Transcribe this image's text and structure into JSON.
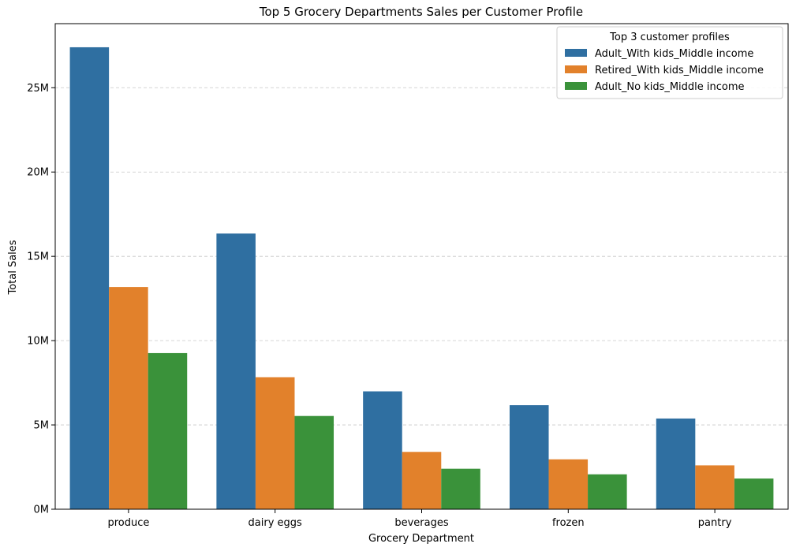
{
  "chart_data": {
    "type": "bar",
    "title": "Top 5 Grocery Departments Sales per Customer Profile",
    "xlabel": "Grocery Department",
    "ylabel": "Total Sales",
    "categories": [
      "produce",
      "dairy eggs",
      "beverages",
      "frozen",
      "pantry"
    ],
    "series": [
      {
        "name": "Adult_With kids_Middle income",
        "color": "#2f6fa1",
        "values": [
          27400000,
          16350000,
          6990000,
          6170000,
          5380000
        ]
      },
      {
        "name": "Retired_With kids_Middle income",
        "color": "#e2812b",
        "values": [
          13180000,
          7830000,
          3400000,
          2960000,
          2600000
        ]
      },
      {
        "name": "Adult_No kids_Middle income",
        "color": "#3a923a",
        "values": [
          9260000,
          5530000,
          2400000,
          2070000,
          1820000
        ]
      }
    ],
    "ylim": [
      0,
      28800000
    ],
    "yticks": [
      0,
      5000000,
      10000000,
      15000000,
      20000000,
      25000000
    ],
    "ytick_labels": [
      "0M",
      "5M",
      "10M",
      "15M",
      "20M",
      "25M"
    ],
    "grid": "y, dashed",
    "legend": {
      "title": "Top 3 customer profiles",
      "position": "top-right"
    }
  }
}
